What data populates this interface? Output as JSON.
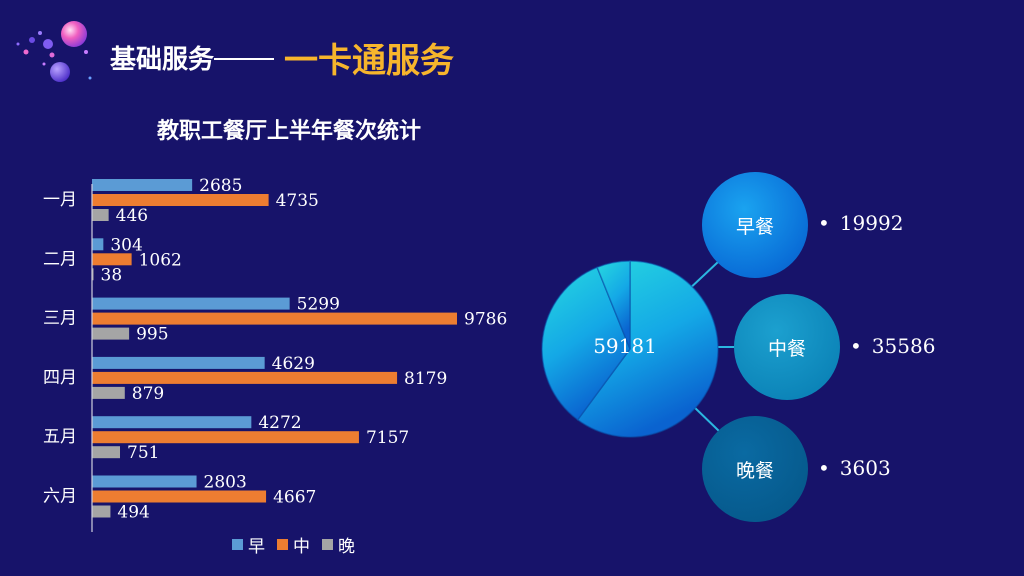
{
  "header": {
    "main": "基础服务",
    "accent": "一卡通服务"
  },
  "colors": {
    "background": "#17136a",
    "accent": "#f7b52c",
    "breakfast": "#5b9bd5",
    "lunch": "#ed7d31",
    "dinner": "#a5a5a5"
  },
  "chart_data": {
    "type": "bar",
    "title": "教职工餐厅上半年餐次统计",
    "categories": [
      "一月",
      "二月",
      "三月",
      "四月",
      "五月",
      "六月"
    ],
    "series": [
      {
        "name": "早",
        "values": [
          2685,
          304,
          5299,
          4629,
          4272,
          2803
        ]
      },
      {
        "name": "中",
        "values": [
          4735,
          1062,
          9786,
          8179,
          7157,
          4667
        ]
      },
      {
        "name": "晚",
        "values": [
          446,
          38,
          995,
          879,
          751,
          494
        ]
      }
    ],
    "legend": "bottom",
    "grid": false
  },
  "summary": {
    "total": "59181",
    "breakfast_label": "早餐",
    "breakfast_value": "19992",
    "lunch_label": "中餐",
    "lunch_value": "35586",
    "dinner_label": "晚餐",
    "dinner_value": "3603",
    "bullet": "•"
  }
}
